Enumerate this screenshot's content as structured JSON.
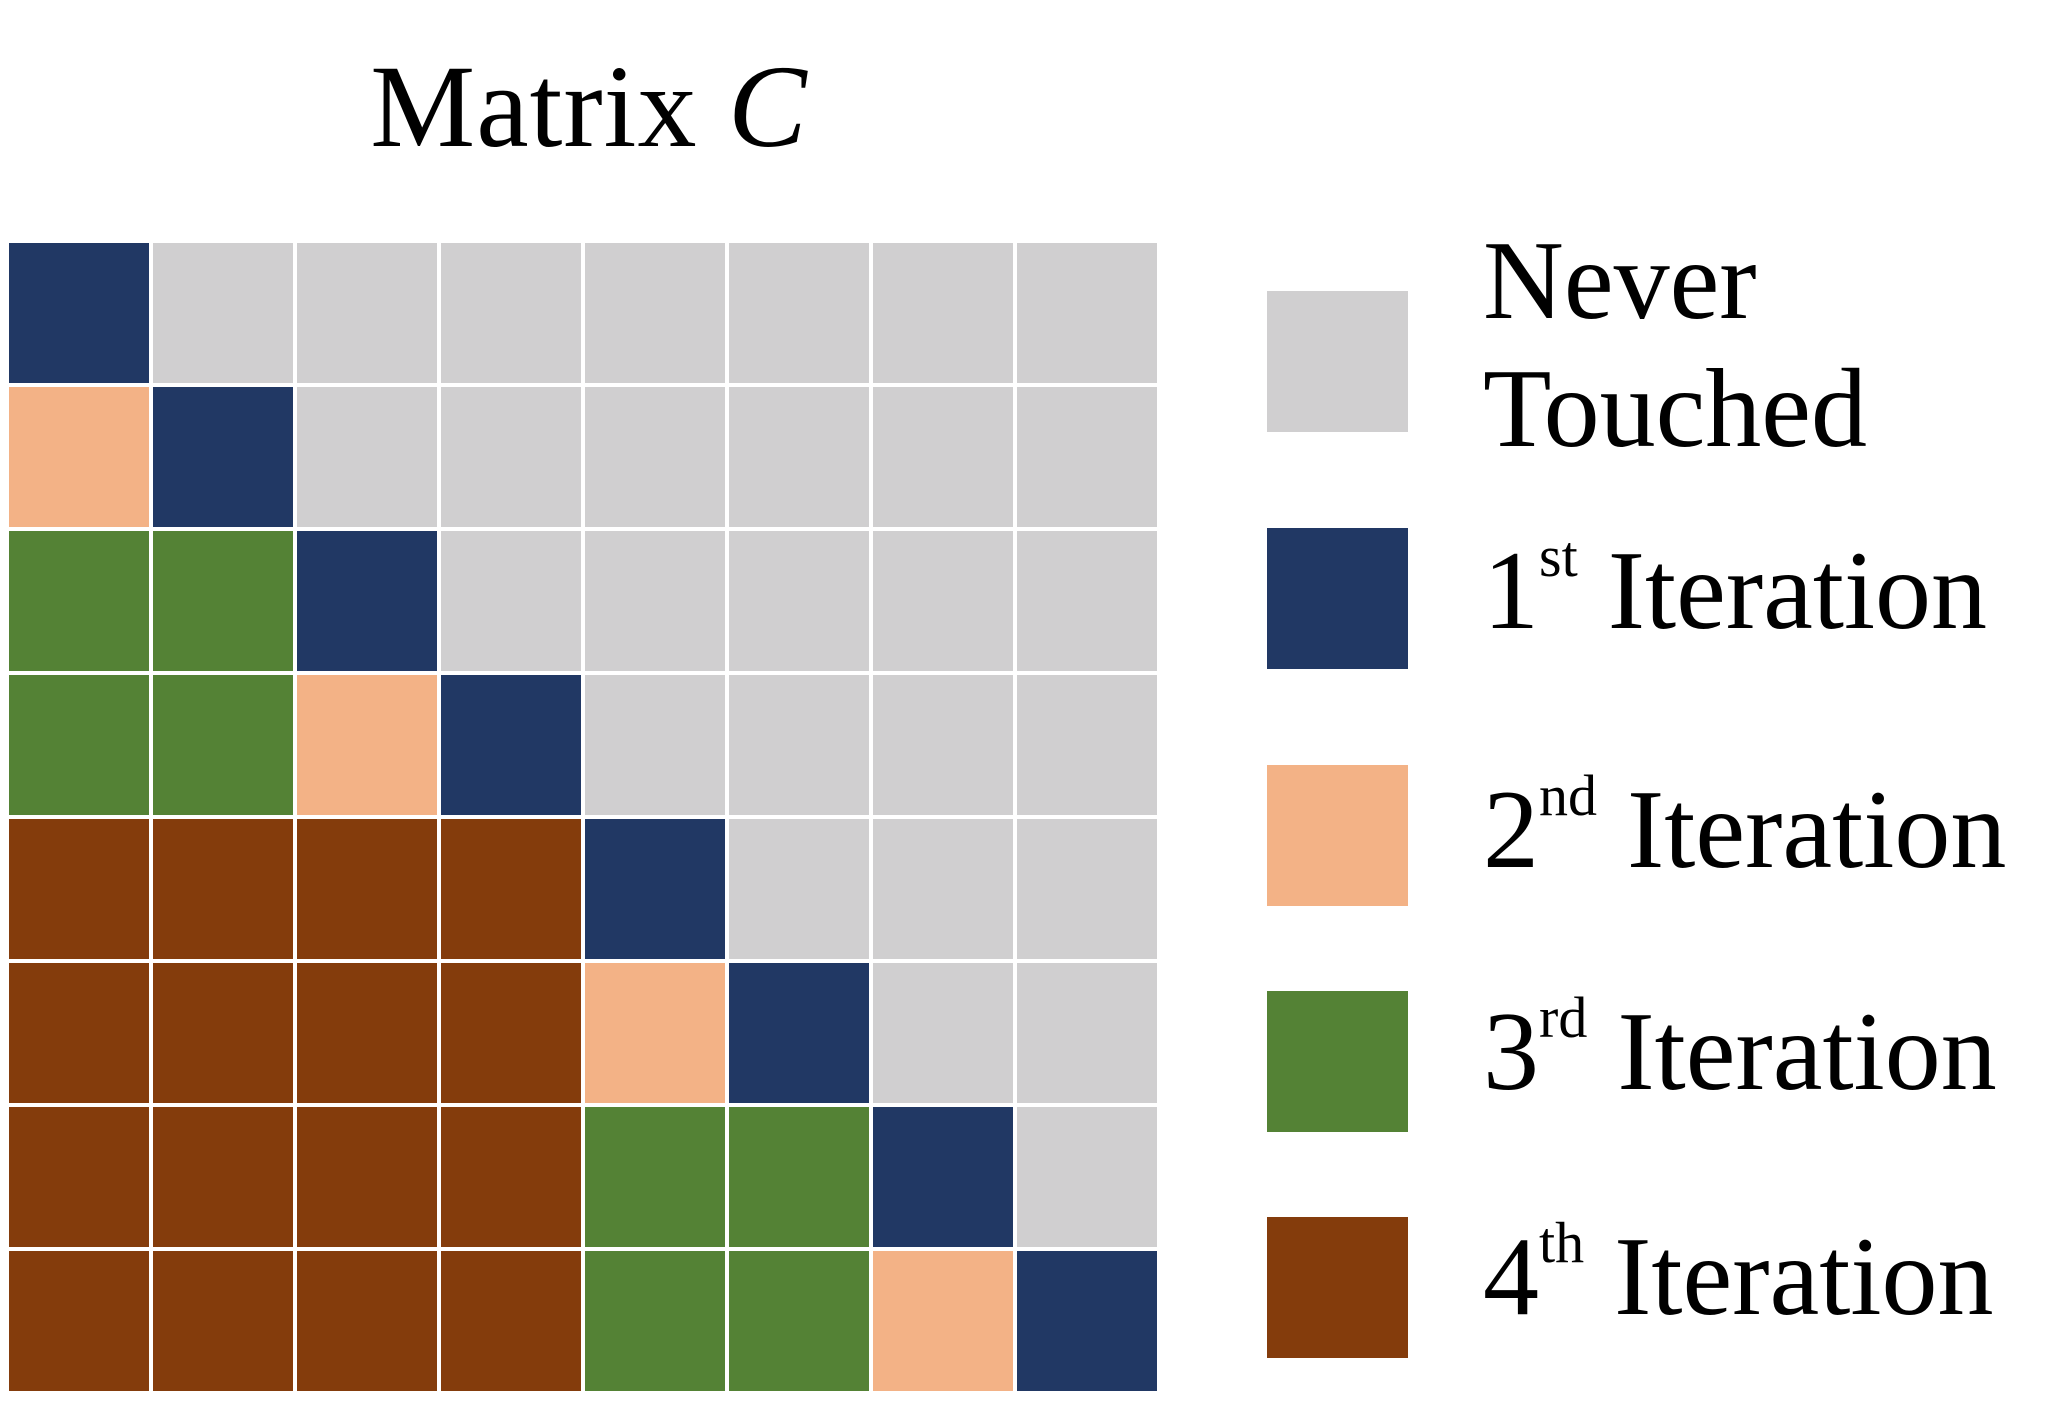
{
  "title": {
    "prefix": "Matrix",
    "variable": "C"
  },
  "matrix": {
    "rows": 8,
    "cols": 8,
    "cells": [
      [
        "iter1",
        "never",
        "never",
        "never",
        "never",
        "never",
        "never",
        "never"
      ],
      [
        "iter2",
        "iter1",
        "never",
        "never",
        "never",
        "never",
        "never",
        "never"
      ],
      [
        "iter3",
        "iter3",
        "iter1",
        "never",
        "never",
        "never",
        "never",
        "never"
      ],
      [
        "iter3",
        "iter3",
        "iter2",
        "iter1",
        "never",
        "never",
        "never",
        "never"
      ],
      [
        "iter4",
        "iter4",
        "iter4",
        "iter4",
        "iter1",
        "never",
        "never",
        "never"
      ],
      [
        "iter4",
        "iter4",
        "iter4",
        "iter4",
        "iter2",
        "iter1",
        "never",
        "never"
      ],
      [
        "iter4",
        "iter4",
        "iter4",
        "iter4",
        "iter3",
        "iter3",
        "iter1",
        "never"
      ],
      [
        "iter4",
        "iter4",
        "iter4",
        "iter4",
        "iter3",
        "iter3",
        "iter2",
        "iter1"
      ]
    ]
  },
  "colors": {
    "never": "#d0cfd0",
    "iter1": "#213864",
    "iter2": "#f3b286",
    "iter3": "#548235",
    "iter4": "#843c0c"
  },
  "legend": {
    "never": {
      "line1": "Never",
      "line2": "Touched"
    },
    "iter1": {
      "num": "1",
      "sup": "st",
      "word": "Iteration"
    },
    "iter2": {
      "num": "2",
      "sup": "nd",
      "word": "Iteration"
    },
    "iter3": {
      "num": "3",
      "sup": "rd",
      "word": "Iteration"
    },
    "iter4": {
      "num": "4",
      "sup": "th",
      "word": "Iteration"
    }
  }
}
